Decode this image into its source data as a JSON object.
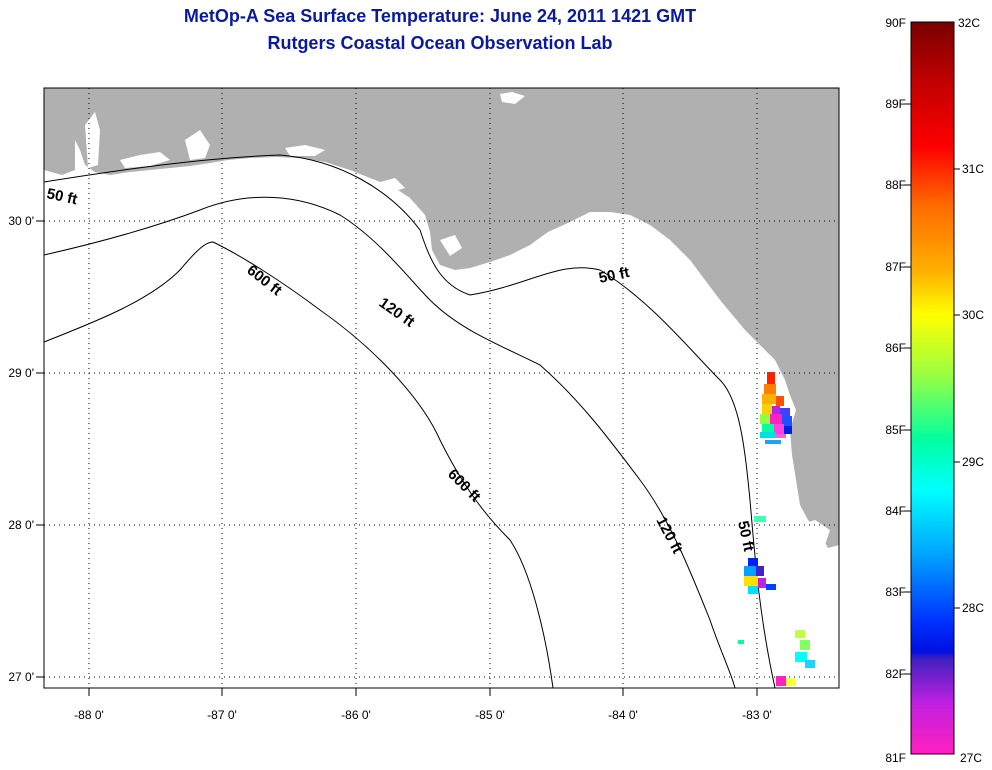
{
  "header": {
    "title": "MetOp-A Sea Surface Temperature:  June 24, 2011 1421 GMT",
    "subtitle": "Rutgers Coastal Ocean Observation Lab"
  },
  "map": {
    "region": "Gulf of Mexico - Florida Big Bend",
    "lon_labels": [
      "-88 0'",
      "-87 0'",
      "-86 0'",
      "-85 0'",
      "-84 0'",
      "-83 0'"
    ],
    "lat_labels": [
      "30 0'",
      "29 0'",
      "28 0'",
      "27 0'"
    ],
    "contour_labels": [
      "50 ft",
      "600 ft",
      "120 ft",
      "50 ft",
      "600 ft",
      "120 ft",
      "50 ft"
    ],
    "land_color": "#b0b0b0",
    "water_color": "#ffffff"
  },
  "colorbar": {
    "fahrenheit_labels": [
      "90F",
      "89F",
      "88F",
      "87F",
      "86F",
      "85F",
      "84F",
      "83F",
      "82F",
      "81F"
    ],
    "celsius_labels": [
      "32C",
      "31C",
      "30C",
      "29C",
      "28C",
      "27C"
    ],
    "colors": [
      "#7a0000",
      "#c00000",
      "#ff0000",
      "#ff6a00",
      "#ffb000",
      "#ffff00",
      "#9cff40",
      "#00ffa0",
      "#00ffff",
      "#00a0ff",
      "#0030ff",
      "#4020c0",
      "#c020e0",
      "#ff20c0"
    ]
  }
}
